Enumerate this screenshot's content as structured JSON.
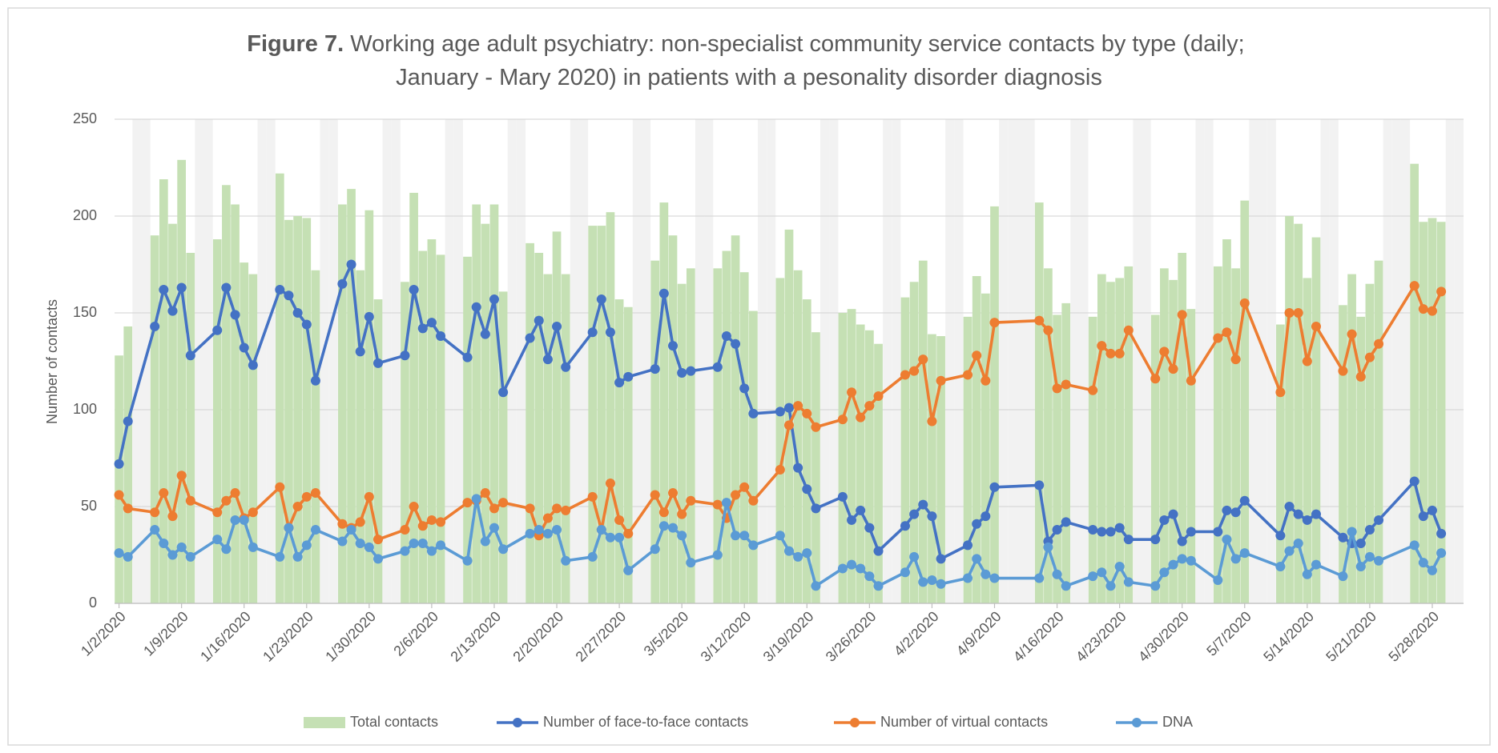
{
  "chart_data": {
    "type": "combo",
    "title": [
      "Figure 7.",
      " Working age adult psychiatry: non-specialist community service contacts by type (daily;",
      "January - Mary 2020) in patients with a pesonality disorder diagnosis"
    ],
    "y_label": "Number of contacts",
    "x": [
      "1/2/2020",
      "1/3/2020",
      "1/6/2020",
      "1/7/2020",
      "1/8/2020",
      "1/9/2020",
      "1/10/2020",
      "1/13/2020",
      "1/14/2020",
      "1/15/2020",
      "1/16/2020",
      "1/17/2020",
      "1/20/2020",
      "1/21/2020",
      "1/22/2020",
      "1/23/2020",
      "1/24/2020",
      "1/27/2020",
      "1/28/2020",
      "1/29/2020",
      "1/30/2020",
      "1/31/2020",
      "2/3/2020",
      "2/4/2020",
      "2/5/2020",
      "2/6/2020",
      "2/7/2020",
      "2/10/2020",
      "2/11/2020",
      "2/12/2020",
      "2/13/2020",
      "2/14/2020",
      "2/17/2020",
      "2/18/2020",
      "2/19/2020",
      "2/20/2020",
      "2/21/2020",
      "2/24/2020",
      "2/25/2020",
      "2/26/2020",
      "2/27/2020",
      "2/28/2020",
      "3/2/2020",
      "3/3/2020",
      "3/4/2020",
      "3/5/2020",
      "3/6/2020",
      "3/9/2020",
      "3/10/2020",
      "3/11/2020",
      "3/12/2020",
      "3/13/2020",
      "3/16/2020",
      "3/17/2020",
      "3/18/2020",
      "3/19/2020",
      "3/20/2020",
      "3/23/2020",
      "3/24/2020",
      "3/25/2020",
      "3/26/2020",
      "3/27/2020",
      "3/30/2020",
      "3/31/2020",
      "4/1/2020",
      "4/2/2020",
      "4/3/2020",
      "4/6/2020",
      "4/7/2020",
      "4/8/2020",
      "4/9/2020",
      "4/14/2020",
      "4/15/2020",
      "4/16/2020",
      "4/17/2020",
      "4/20/2020",
      "4/21/2020",
      "4/22/2020",
      "4/23/2020",
      "4/24/2020",
      "4/27/2020",
      "4/28/2020",
      "4/29/2020",
      "4/30/2020",
      "5/1/2020",
      "5/4/2020",
      "5/5/2020",
      "5/6/2020",
      "5/7/2020",
      "5/11/2020",
      "5/12/2020",
      "5/13/2020",
      "5/14/2020",
      "5/15/2020",
      "5/18/2020",
      "5/19/2020",
      "5/20/2020",
      "5/21/2020",
      "5/22/2020",
      "5/26/2020",
      "5/27/2020",
      "5/28/2020",
      "5/29/2020"
    ],
    "series": [
      {
        "name": "Total contacts",
        "type": "bar",
        "color": "#c5e0b4",
        "values": [
          128,
          143,
          190,
          219,
          196,
          229,
          181,
          188,
          216,
          206,
          176,
          170,
          222,
          198,
          200,
          199,
          172,
          206,
          214,
          172,
          203,
          157,
          166,
          212,
          182,
          188,
          180,
          179,
          206,
          196,
          206,
          161,
          186,
          181,
          170,
          192,
          170,
          195,
          195,
          202,
          157,
          153,
          177,
          207,
          190,
          165,
          173,
          173,
          182,
          190,
          171,
          151,
          168,
          193,
          172,
          157,
          140,
          150,
          152,
          144,
          141,
          134,
          158,
          166,
          177,
          139,
          138,
          148,
          169,
          160,
          205,
          207,
          173,
          149,
          155,
          148,
          170,
          166,
          168,
          174,
          149,
          173,
          167,
          181,
          152,
          174,
          188,
          173,
          208,
          144,
          200,
          196,
          168,
          189,
          154,
          170,
          148,
          165,
          177,
          227,
          197,
          199,
          197
        ]
      },
      {
        "name": "Number of face-to-face contacts",
        "type": "line",
        "color": "#4472c4",
        "values": [
          72,
          94,
          143,
          162,
          151,
          163,
          128,
          141,
          163,
          149,
          132,
          123,
          162,
          159,
          150,
          144,
          115,
          165,
          175,
          130,
          148,
          124,
          128,
          162,
          142,
          145,
          138,
          127,
          153,
          139,
          157,
          109,
          137,
          146,
          126,
          143,
          122,
          140,
          157,
          140,
          114,
          117,
          121,
          160,
          133,
          119,
          120,
          122,
          138,
          134,
          111,
          98,
          99,
          101,
          70,
          59,
          49,
          55,
          43,
          48,
          39,
          27,
          40,
          46,
          51,
          45,
          23,
          30,
          41,
          45,
          60,
          61,
          32,
          38,
          42,
          38,
          37,
          37,
          39,
          33,
          33,
          43,
          46,
          32,
          37,
          37,
          48,
          47,
          53,
          35,
          50,
          46,
          43,
          46,
          34,
          31,
          31,
          38,
          43,
          63,
          45,
          48,
          36
        ]
      },
      {
        "name": "Number of virtual contacts",
        "type": "line",
        "color": "#ed7d31",
        "values": [
          56,
          49,
          47,
          57,
          45,
          66,
          53,
          47,
          53,
          57,
          44,
          47,
          60,
          39,
          50,
          55,
          57,
          41,
          39,
          42,
          55,
          33,
          38,
          50,
          40,
          43,
          42,
          52,
          53,
          57,
          49,
          52,
          49,
          35,
          44,
          49,
          48,
          55,
          38,
          62,
          43,
          36,
          56,
          47,
          57,
          46,
          53,
          51,
          44,
          56,
          60,
          53,
          69,
          92,
          102,
          98,
          91,
          95,
          109,
          96,
          102,
          107,
          118,
          120,
          126,
          94,
          115,
          118,
          128,
          115,
          145,
          146,
          141,
          111,
          113,
          110,
          133,
          129,
          129,
          141,
          116,
          130,
          121,
          149,
          115,
          137,
          140,
          126,
          155,
          109,
          150,
          150,
          125,
          143,
          120,
          139,
          117,
          127,
          134,
          164,
          152,
          151,
          161
        ]
      },
      {
        "name": "DNA",
        "type": "line",
        "color": "#5b9bd5",
        "values": [
          26,
          24,
          38,
          31,
          25,
          29,
          24,
          33,
          28,
          43,
          43,
          29,
          24,
          39,
          24,
          30,
          38,
          32,
          38,
          31,
          29,
          23,
          27,
          31,
          31,
          27,
          30,
          22,
          54,
          32,
          39,
          28,
          36,
          38,
          36,
          38,
          22,
          24,
          38,
          34,
          34,
          17,
          28,
          40,
          39,
          35,
          21,
          25,
          52,
          35,
          35,
          30,
          35,
          27,
          24,
          26,
          9,
          18,
          20,
          18,
          14,
          9,
          16,
          24,
          11,
          12,
          10,
          13,
          23,
          15,
          13,
          13,
          29,
          15,
          9,
          14,
          16,
          9,
          19,
          11,
          9,
          16,
          20,
          23,
          22,
          12,
          33,
          23,
          26,
          19,
          27,
          31,
          15,
          20,
          14,
          37,
          19,
          24,
          22,
          30,
          21,
          17,
          26
        ]
      }
    ],
    "xlim": [
      "1/2/2020",
      "5/31/2020"
    ],
    "xticks": [
      "1/2/2020",
      "1/9/2020",
      "1/16/2020",
      "1/23/2020",
      "1/30/2020",
      "2/6/2020",
      "2/13/2020",
      "2/20/2020",
      "2/27/2020",
      "3/5/2020",
      "3/12/2020",
      "3/19/2020",
      "3/26/2020",
      "4/2/2020",
      "4/9/2020",
      "4/16/2020",
      "4/23/2020",
      "4/30/2020",
      "5/7/2020",
      "5/14/2020",
      "5/21/2020",
      "5/28/2020"
    ],
    "ylim": [
      0,
      250
    ],
    "yticks": [
      0,
      50,
      100,
      150,
      200,
      250
    ],
    "grid": true,
    "legend": "bottom",
    "no_data_color": "#f2f2f2"
  }
}
